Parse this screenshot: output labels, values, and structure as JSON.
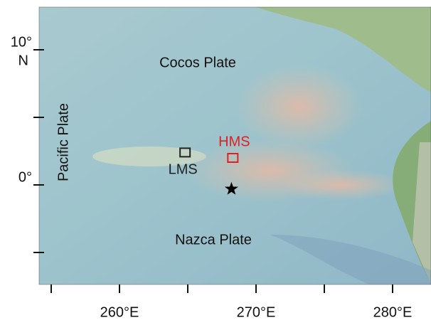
{
  "map": {
    "xticks": [
      255,
      260,
      265,
      270,
      275,
      280
    ],
    "xtick_labels": [
      null,
      "260°E",
      null,
      "270°E",
      null,
      "280°E"
    ],
    "yticks": [
      10,
      5,
      0,
      -5
    ],
    "ytick_labels": [
      {
        "deg": "10°",
        "hemisphere": "N"
      },
      null,
      {
        "deg": "0°"
      },
      null
    ],
    "plates": [
      "Cocos Plate",
      "Pacific Plate",
      "Nazca Plate"
    ],
    "sites": [
      {
        "name": "LMS",
        "lon": 264.8,
        "lat": 2.4,
        "color": "#222222",
        "marker": "square"
      },
      {
        "name": "HMS",
        "lon": 268.3,
        "lat": 2.0,
        "color": "#e02020",
        "marker": "square"
      },
      {
        "lon": 268.2,
        "lat": -0.3,
        "color": "#000000",
        "marker": "star"
      }
    ]
  }
}
